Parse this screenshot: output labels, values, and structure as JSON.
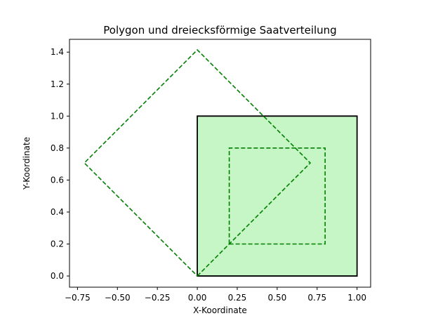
{
  "chart_data": {
    "type": "line",
    "title": "Polygon und dreiecksförmige Saatverteilung",
    "xlabel": "X-Koordinate",
    "ylabel": "Y-Koordinate",
    "xlim": [
      -0.8,
      1.085
    ],
    "ylim": [
      -0.07,
      1.48
    ],
    "xticks": [
      -0.75,
      -0.5,
      -0.25,
      0.0,
      0.25,
      0.5,
      0.75,
      1.0
    ],
    "xtick_labels": [
      "−0.75",
      "−0.50",
      "−0.25",
      "0.00",
      "0.25",
      "0.50",
      "0.75",
      "1.00"
    ],
    "yticks": [
      0.0,
      0.2,
      0.4,
      0.6,
      0.8,
      1.0,
      1.2,
      1.4
    ],
    "ytick_labels": [
      "0.0",
      "0.2",
      "0.4",
      "0.6",
      "0.8",
      "1.0",
      "1.2",
      "1.4"
    ],
    "grid": false,
    "legend": "none",
    "shapes": [
      {
        "kind": "filled-polygon",
        "points": [
          [
            0,
            0
          ],
          [
            1,
            0
          ],
          [
            1,
            1
          ],
          [
            0,
            1
          ]
        ],
        "fill": "#c6f5c6",
        "stroke": "#000000",
        "dashed": false
      },
      {
        "kind": "outline-polygon",
        "points": [
          [
            0.2,
            0.2
          ],
          [
            0.8,
            0.2
          ],
          [
            0.8,
            0.8
          ],
          [
            0.2,
            0.8
          ]
        ],
        "stroke": "#008000",
        "dashed": true
      },
      {
        "kind": "outline-polygon",
        "points": [
          [
            0,
            0
          ],
          [
            0.707,
            0.707
          ],
          [
            0,
            1.414
          ],
          [
            -0.707,
            0.707
          ]
        ],
        "stroke": "#008000",
        "dashed": true
      }
    ]
  }
}
